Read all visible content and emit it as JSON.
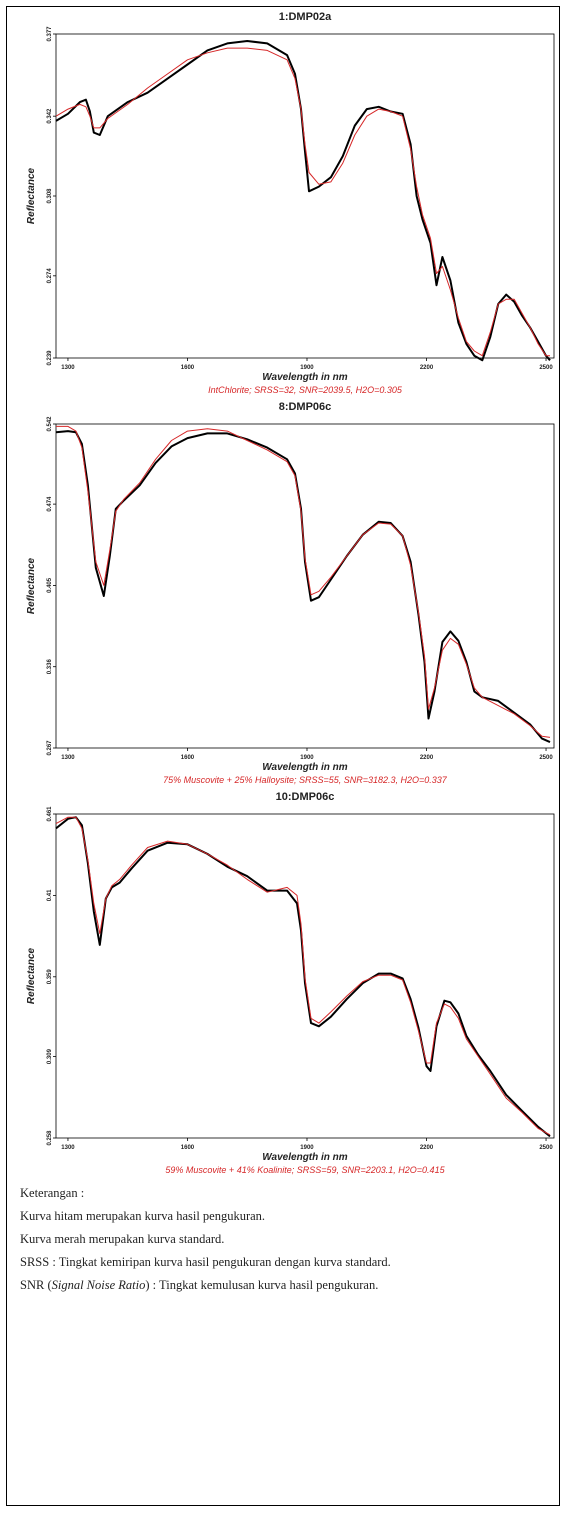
{
  "chart_data": [
    {
      "type": "line",
      "title": "1:DMP02a",
      "xlabel": "Wavelength in nm",
      "ylabel": "Reflectance",
      "note": "IntChlorite; SRSS=32, SNR=2039.5, H2O=0.305",
      "xlim": [
        1270,
        2520
      ],
      "ylim": [
        0.239,
        0.377
      ],
      "xticks": [
        "1300",
        "1600",
        "1900",
        "2200",
        "2500"
      ],
      "yticks": [
        "0.239",
        "0.274",
        "0.308",
        "0.342",
        "0.377"
      ],
      "grid": false,
      "series": [
        {
          "color": "#000000",
          "x": [
            1270,
            1300,
            1330,
            1345,
            1355,
            1365,
            1380,
            1400,
            1450,
            1500,
            1550,
            1600,
            1650,
            1700,
            1750,
            1800,
            1850,
            1870,
            1885,
            1895,
            1905,
            1930,
            1960,
            1990,
            2020,
            2050,
            2080,
            2110,
            2140,
            2160,
            2175,
            2190,
            2210,
            2225,
            2240,
            2260,
            2280,
            2300,
            2320,
            2340,
            2360,
            2380,
            2400,
            2420,
            2440,
            2460,
            2480,
            2500,
            2510
          ],
          "y": [
            0.34,
            0.343,
            0.348,
            0.349,
            0.344,
            0.335,
            0.334,
            0.342,
            0.348,
            0.352,
            0.358,
            0.364,
            0.37,
            0.373,
            0.374,
            0.373,
            0.368,
            0.36,
            0.345,
            0.327,
            0.31,
            0.312,
            0.316,
            0.325,
            0.338,
            0.345,
            0.346,
            0.344,
            0.343,
            0.33,
            0.308,
            0.298,
            0.288,
            0.27,
            0.282,
            0.272,
            0.254,
            0.245,
            0.24,
            0.238,
            0.248,
            0.262,
            0.266,
            0.263,
            0.257,
            0.252,
            0.246,
            0.24,
            0.238
          ]
        },
        {
          "color": "#d62728",
          "x": [
            1270,
            1300,
            1330,
            1345,
            1355,
            1365,
            1380,
            1400,
            1450,
            1500,
            1550,
            1600,
            1650,
            1700,
            1750,
            1800,
            1850,
            1870,
            1885,
            1895,
            1905,
            1930,
            1960,
            1990,
            2020,
            2050,
            2080,
            2110,
            2140,
            2160,
            2175,
            2190,
            2210,
            2225,
            2240,
            2260,
            2280,
            2300,
            2320,
            2340,
            2360,
            2380,
            2400,
            2420,
            2440,
            2460,
            2480,
            2500,
            2510
          ],
          "y": [
            0.342,
            0.345,
            0.347,
            0.346,
            0.342,
            0.337,
            0.337,
            0.341,
            0.347,
            0.354,
            0.36,
            0.366,
            0.369,
            0.371,
            0.371,
            0.37,
            0.366,
            0.358,
            0.345,
            0.33,
            0.318,
            0.313,
            0.314,
            0.322,
            0.334,
            0.342,
            0.345,
            0.344,
            0.342,
            0.328,
            0.312,
            0.3,
            0.29,
            0.275,
            0.278,
            0.268,
            0.256,
            0.246,
            0.242,
            0.24,
            0.25,
            0.262,
            0.264,
            0.264,
            0.258,
            0.252,
            0.245,
            0.24,
            0.24
          ]
        }
      ]
    },
    {
      "type": "line",
      "title": "8:DMP06c",
      "xlabel": "Wavelength in nm",
      "ylabel": "Reflectance",
      "note": "75% Muscovite + 25% Halloysite; SRSS=55, SNR=3182.3, H2O=0.337",
      "xlim": [
        1270,
        2520
      ],
      "ylim": [
        0.267,
        0.542
      ],
      "xticks": [
        "1300",
        "1600",
        "1900",
        "2200",
        "2500"
      ],
      "yticks": [
        "0.267",
        "0.336",
        "0.405",
        "0.474",
        "0.542"
      ],
      "grid": false,
      "series": [
        {
          "color": "#000000",
          "x": [
            1270,
            1300,
            1320,
            1335,
            1350,
            1370,
            1390,
            1405,
            1420,
            1440,
            1480,
            1520,
            1560,
            1600,
            1650,
            1700,
            1750,
            1800,
            1850,
            1870,
            1885,
            1895,
            1910,
            1930,
            1960,
            2000,
            2040,
            2080,
            2110,
            2140,
            2160,
            2180,
            2195,
            2205,
            2220,
            2240,
            2260,
            2280,
            2300,
            2320,
            2340,
            2380,
            2420,
            2460,
            2490,
            2510
          ],
          "y": [
            0.535,
            0.536,
            0.535,
            0.525,
            0.49,
            0.42,
            0.396,
            0.43,
            0.47,
            0.477,
            0.49,
            0.509,
            0.523,
            0.53,
            0.534,
            0.534,
            0.529,
            0.522,
            0.512,
            0.5,
            0.47,
            0.425,
            0.392,
            0.395,
            0.41,
            0.43,
            0.448,
            0.459,
            0.458,
            0.447,
            0.425,
            0.38,
            0.34,
            0.292,
            0.315,
            0.357,
            0.366,
            0.358,
            0.34,
            0.315,
            0.31,
            0.307,
            0.297,
            0.287,
            0.275,
            0.272
          ]
        },
        {
          "color": "#d62728",
          "x": [
            1270,
            1300,
            1320,
            1335,
            1350,
            1370,
            1390,
            1405,
            1420,
            1440,
            1480,
            1520,
            1560,
            1600,
            1650,
            1700,
            1750,
            1800,
            1850,
            1870,
            1885,
            1895,
            1910,
            1930,
            1960,
            2000,
            2040,
            2080,
            2110,
            2140,
            2160,
            2180,
            2195,
            2205,
            2220,
            2240,
            2260,
            2280,
            2300,
            2320,
            2340,
            2380,
            2420,
            2460,
            2490,
            2510
          ],
          "y": [
            0.54,
            0.54,
            0.536,
            0.522,
            0.485,
            0.425,
            0.405,
            0.435,
            0.468,
            0.478,
            0.492,
            0.512,
            0.528,
            0.536,
            0.538,
            0.536,
            0.528,
            0.52,
            0.51,
            0.498,
            0.468,
            0.428,
            0.397,
            0.4,
            0.412,
            0.43,
            0.448,
            0.458,
            0.457,
            0.447,
            0.422,
            0.382,
            0.345,
            0.3,
            0.318,
            0.35,
            0.36,
            0.355,
            0.338,
            0.318,
            0.31,
            0.303,
            0.296,
            0.286,
            0.277,
            0.276
          ]
        }
      ]
    },
    {
      "type": "line",
      "title": "10:DMP06c",
      "xlabel": "Wavelength in nm",
      "ylabel": "Reflectance",
      "note": "59% Muscovite + 41% Koalinite; SRSS=59, SNR=2203.1, H2O=0.415",
      "xlim": [
        1270,
        2520
      ],
      "ylim": [
        0.258,
        0.461
      ],
      "xticks": [
        "1300",
        "1600",
        "1900",
        "2200",
        "2500"
      ],
      "yticks": [
        "0.258",
        "0.309",
        "0.359",
        "0.41",
        "0.461"
      ],
      "grid": false,
      "series": [
        {
          "color": "#000000",
          "x": [
            1270,
            1300,
            1320,
            1335,
            1350,
            1365,
            1380,
            1395,
            1410,
            1430,
            1460,
            1500,
            1550,
            1600,
            1650,
            1700,
            1750,
            1800,
            1850,
            1875,
            1885,
            1895,
            1910,
            1930,
            1960,
            2000,
            2040,
            2080,
            2110,
            2140,
            2160,
            2180,
            2200,
            2210,
            2225,
            2245,
            2260,
            2280,
            2300,
            2330,
            2360,
            2400,
            2440,
            2480,
            2510
          ],
          "y": [
            0.452,
            0.458,
            0.459,
            0.454,
            0.43,
            0.4,
            0.379,
            0.408,
            0.415,
            0.418,
            0.427,
            0.438,
            0.443,
            0.442,
            0.436,
            0.428,
            0.422,
            0.413,
            0.413,
            0.405,
            0.388,
            0.355,
            0.33,
            0.328,
            0.334,
            0.345,
            0.355,
            0.361,
            0.361,
            0.358,
            0.345,
            0.327,
            0.303,
            0.3,
            0.328,
            0.344,
            0.343,
            0.336,
            0.322,
            0.31,
            0.3,
            0.285,
            0.275,
            0.265,
            0.259
          ]
        },
        {
          "color": "#d62728",
          "x": [
            1270,
            1300,
            1320,
            1335,
            1350,
            1365,
            1380,
            1395,
            1410,
            1430,
            1460,
            1500,
            1550,
            1600,
            1650,
            1700,
            1750,
            1800,
            1850,
            1875,
            1885,
            1895,
            1910,
            1930,
            1960,
            2000,
            2040,
            2080,
            2110,
            2140,
            2160,
            2180,
            2200,
            2210,
            2225,
            2245,
            2260,
            2280,
            2300,
            2330,
            2360,
            2400,
            2440,
            2480,
            2510
          ],
          "y": [
            0.455,
            0.459,
            0.459,
            0.452,
            0.432,
            0.405,
            0.386,
            0.408,
            0.416,
            0.42,
            0.429,
            0.44,
            0.444,
            0.442,
            0.436,
            0.429,
            0.42,
            0.412,
            0.415,
            0.41,
            0.392,
            0.358,
            0.333,
            0.33,
            0.337,
            0.347,
            0.356,
            0.36,
            0.36,
            0.357,
            0.343,
            0.325,
            0.305,
            0.305,
            0.33,
            0.342,
            0.34,
            0.333,
            0.32,
            0.309,
            0.298,
            0.283,
            0.274,
            0.264,
            0.26
          ]
        }
      ]
    }
  ],
  "legend": {
    "heading": "Keterangan :",
    "black": "Kurva hitam merupakan kurva hasil pengukuran.",
    "red": "Kurva merah merupakan kurva standard.",
    "srss": "SRSS : Tingkat kemiripan kurva hasil pengukuran dengan kurva standard.",
    "snr_prefix": "SNR (",
    "snr_italic": "Signal Noise Ratio",
    "snr_suffix": ") : Tingkat kemulusan kurva hasil pengukuran."
  }
}
